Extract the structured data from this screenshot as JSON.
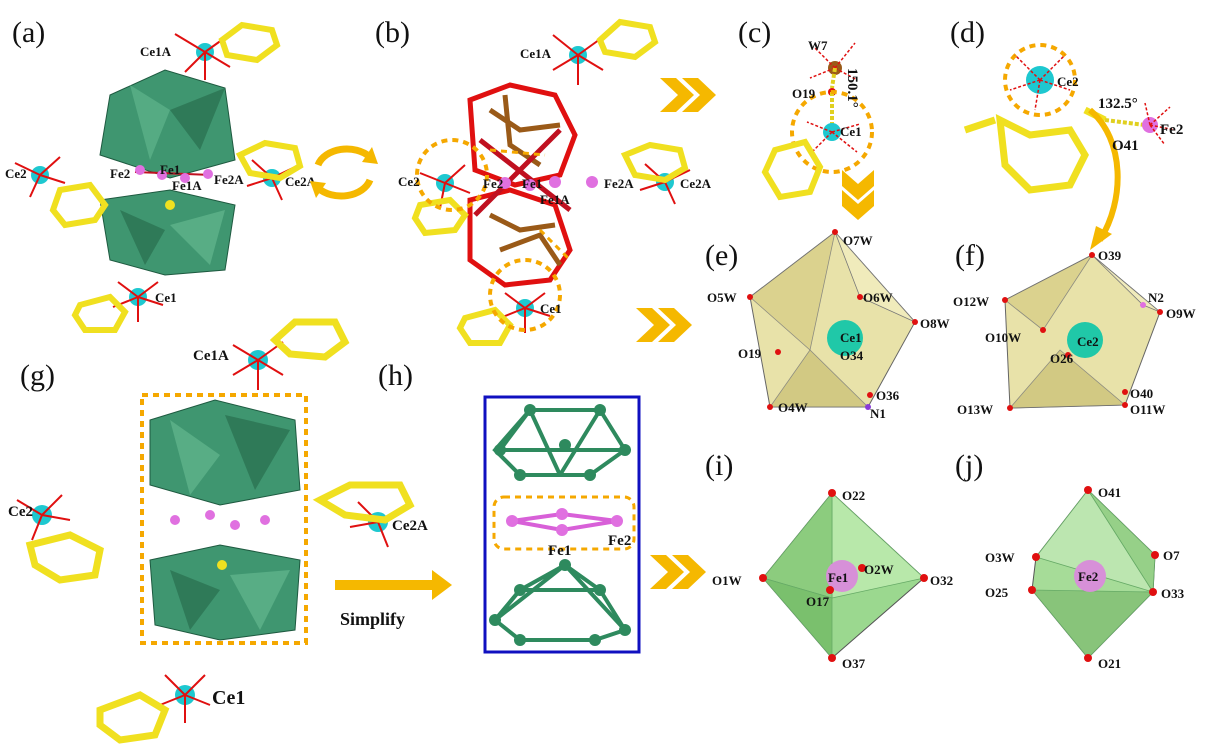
{
  "panels": {
    "a": {
      "label": "(a)",
      "atoms": [
        "Ce1A",
        "Ce2",
        "Fe2",
        "Fe1",
        "Fe1A",
        "Fe2A",
        "Ce2A",
        "Ce1"
      ]
    },
    "b": {
      "label": "(b)",
      "atoms": [
        "Ce1A",
        "Ce2",
        "Fe2",
        "Fe1",
        "Fe1A",
        "Fe2A",
        "Ce2A",
        "Ce1"
      ]
    },
    "c": {
      "label": "(c)",
      "atoms": [
        "W7",
        "O19",
        "Ce1"
      ],
      "measurement": "150.1°"
    },
    "d": {
      "label": "(d)",
      "atoms": [
        "Ce2",
        "Fe2",
        "O41"
      ],
      "measurement": "132.5°"
    },
    "e": {
      "label": "(e)",
      "atoms": [
        "O7W",
        "O5W",
        "O6W",
        "O8W",
        "Ce1",
        "O19",
        "O34",
        "O36",
        "O4W",
        "N1"
      ]
    },
    "f": {
      "label": "(f)",
      "atoms": [
        "O39",
        "O12W",
        "N2",
        "O9W",
        "O10W",
        "Ce2",
        "O26",
        "O40",
        "O13W",
        "O11W"
      ]
    },
    "g": {
      "label": "(g)",
      "atoms": [
        "Ce1A",
        "Ce2",
        "Ce2A",
        "Ce1"
      ]
    },
    "h": {
      "label": "(h)",
      "atoms": [
        "Fe1",
        "Fe2"
      ]
    },
    "i": {
      "label": "(i)",
      "atoms": [
        "O22",
        "O1W",
        "Fe1",
        "O2W",
        "O32",
        "O17",
        "O37"
      ]
    },
    "j": {
      "label": "(j)",
      "atoms": [
        "O41",
        "O3W",
        "O7",
        "O25",
        "Fe2",
        "O33",
        "O21"
      ]
    }
  },
  "arrow_label": "Simplify",
  "colors": {
    "ce": "#1ec8d0",
    "fe": "#e070e0",
    "polyhedra": "#3a8c68",
    "ligand": "#f0e020",
    "oxygen": "#e01010",
    "arrow": "#f5b800",
    "box": "#1010c0",
    "nitrogen": "#8a3ad8"
  }
}
